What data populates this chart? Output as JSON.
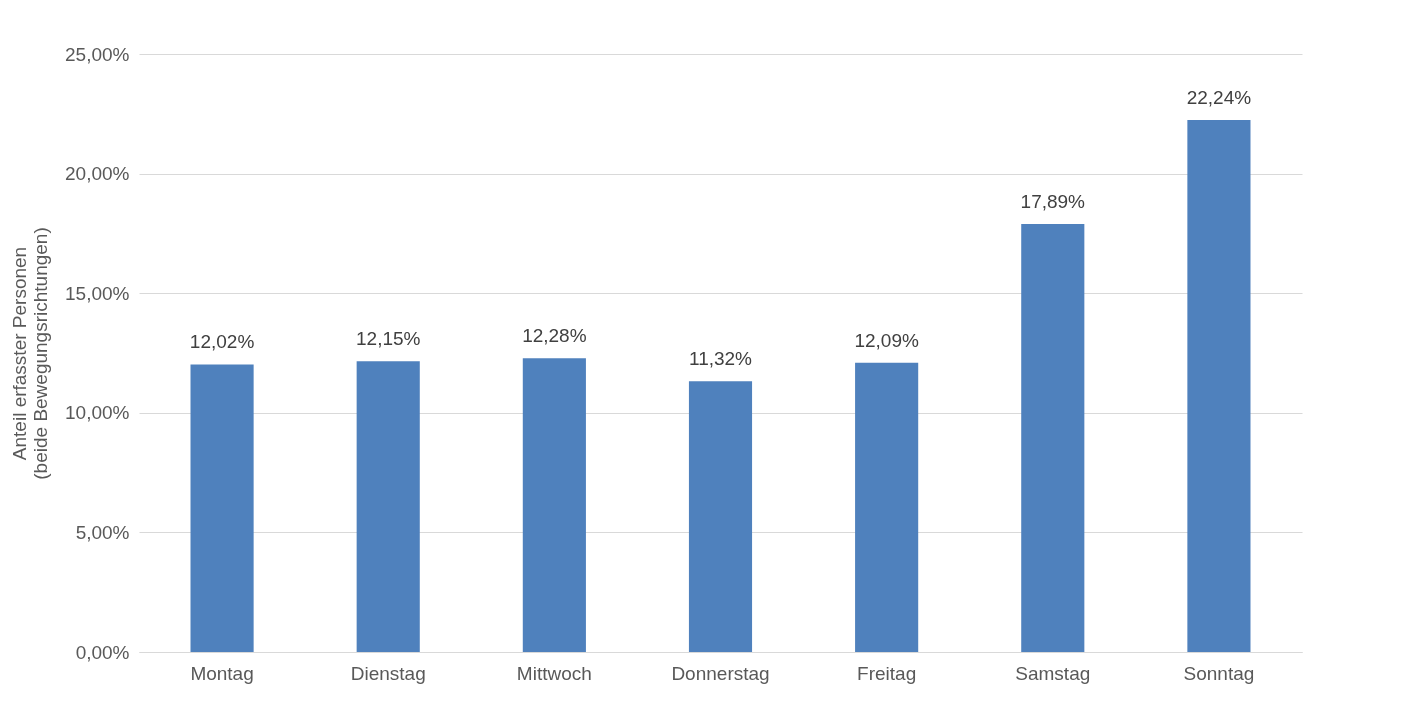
{
  "chart_data": {
    "type": "bar",
    "ylabel": "Anteil erfasster Personen\n(beide Bewegungsrichtungen)",
    "categories": [
      "Montag",
      "Dienstag",
      "Mittwoch",
      "Donnerstag",
      "Freitag",
      "Samstag",
      "Sonntag"
    ],
    "values": [
      12.02,
      12.15,
      12.28,
      11.32,
      12.09,
      17.89,
      22.24
    ],
    "value_labels": [
      "12,02%",
      "12,15%",
      "12,28%",
      "11,32%",
      "12,09%",
      "17,89%",
      "22,24%"
    ],
    "color": "#4f81bd",
    "ylim": [
      0,
      25
    ],
    "yticks": [
      {
        "value": 0,
        "label": "0,00%"
      },
      {
        "value": 5,
        "label": "5,00%"
      },
      {
        "value": 10,
        "label": "10,00%"
      },
      {
        "value": 15,
        "label": "15,00%"
      },
      {
        "value": 20,
        "label": "20,00%"
      },
      {
        "value": 25,
        "label": "25,00%"
      }
    ],
    "grid": "y"
  }
}
